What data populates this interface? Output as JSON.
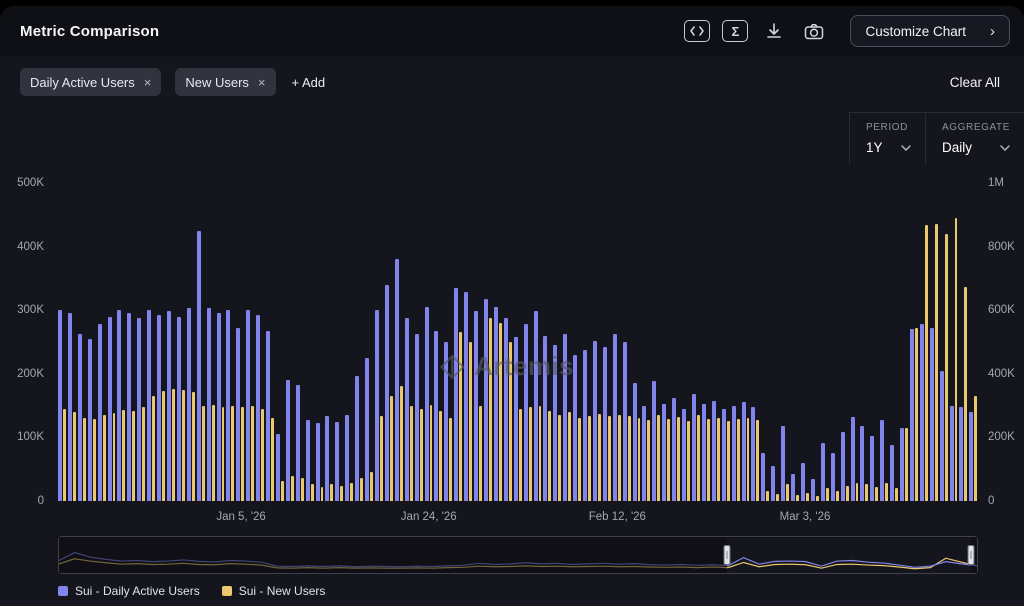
{
  "header": {
    "title": "Metric Comparison",
    "toolbar_icons": [
      "code-embed-icon",
      "sigma-icon",
      "download-icon",
      "camera-icon"
    ],
    "customize_button_label": "Customize Chart",
    "customize_chevron": "›"
  },
  "filters": {
    "chips": [
      {
        "label": "Daily Active Users",
        "close": "×"
      },
      {
        "label": "New Users",
        "close": "×"
      }
    ],
    "add_label": "+ Add",
    "clear_all_label": "Clear All"
  },
  "controls": {
    "period_label": "PERIOD",
    "period_value": "1Y",
    "aggregate_label": "AGGREGATE",
    "aggregate_value": "Daily"
  },
  "watermark_text": "Artemis",
  "legend": [
    {
      "label": "Sui - Daily Active Users",
      "color": "#8184ea"
    },
    {
      "label": "Sui - New Users",
      "color": "#e9c96b"
    }
  ],
  "colors": {
    "background": "#15161d",
    "header_background": "#0f1016",
    "purple_series": "#8184ea",
    "yellow_series": "#e9c96b",
    "chip_background": "#31343f",
    "muted_text": "#a2a7b3"
  },
  "chart_data": {
    "type": "bar",
    "subtype": "grouped daily bars, dual y-axis",
    "title": "Metric Comparison",
    "values_unit": "thousands",
    "left_axis": {
      "label": "Daily Active Users",
      "ticks": [
        "0",
        "100K",
        "200K",
        "300K",
        "400K",
        "500K"
      ],
      "max": 500
    },
    "right_axis": {
      "label": "New Users",
      "ticks": [
        "0",
        "200K",
        "400K",
        "600K",
        "800K",
        "1M"
      ],
      "max": 1000
    },
    "x_ticks": [
      {
        "label": "Jan 5, '26",
        "pos": 0.199
      },
      {
        "label": "Jan 24, '26",
        "pos": 0.403
      },
      {
        "label": "Feb 12, '26",
        "pos": 0.608
      },
      {
        "label": "Mar 3, '26",
        "pos": 0.812
      }
    ],
    "series": [
      {
        "name": "Sui - Daily Active Users",
        "axis": "left",
        "color": "#8184ea",
        "values": [
          300,
          295,
          262,
          255,
          278,
          290,
          300,
          296,
          288,
          300,
          293,
          298,
          290,
          303,
          425,
          303,
          295,
          300,
          272,
          300,
          293,
          268,
          105,
          190,
          183,
          128,
          122,
          133,
          124,
          136,
          196,
          225,
          300,
          340,
          380,
          288,
          262,
          305,
          268,
          250,
          335,
          328,
          298,
          318,
          305,
          288,
          258,
          278,
          298,
          260,
          245,
          262,
          230,
          238,
          252,
          242,
          262,
          250,
          185,
          150,
          188,
          152,
          162,
          145,
          168,
          152,
          158,
          145,
          150,
          155,
          148,
          75,
          55,
          118,
          42,
          60,
          35,
          92,
          75,
          108,
          132,
          118,
          102,
          128,
          88,
          115,
          270,
          278,
          272,
          205,
          150,
          148,
          140
        ]
      },
      {
        "name": "Sui - New Users",
        "axis": "right",
        "color": "#e9c96b",
        "values": [
          290,
          280,
          262,
          258,
          270,
          278,
          286,
          282,
          295,
          330,
          345,
          352,
          348,
          342,
          300,
          302,
          296,
          300,
          295,
          300,
          288,
          262,
          62,
          78,
          72,
          55,
          45,
          52,
          46,
          56,
          72,
          92,
          268,
          330,
          362,
          300,
          290,
          302,
          282,
          260,
          530,
          500,
          300,
          575,
          560,
          500,
          290,
          295,
          300,
          282,
          272,
          280,
          262,
          268,
          275,
          268,
          272,
          268,
          262,
          255,
          272,
          258,
          265,
          252,
          270,
          258,
          262,
          252,
          258,
          262,
          255,
          30,
          22,
          52,
          18,
          26,
          15,
          40,
          32,
          48,
          58,
          52,
          45,
          56,
          40,
          230,
          545,
          868,
          872,
          840,
          890,
          672,
          330
        ]
      }
    ],
    "navigator": {
      "selection_start": 0.728,
      "selection_end": 0.993,
      "purple": [
        34,
        62,
        46,
        38,
        32,
        34,
        30,
        32,
        36,
        31,
        29,
        34,
        32,
        28,
        14,
        13,
        15,
        13,
        15,
        12,
        14,
        13,
        12,
        14,
        13,
        15,
        17,
        24,
        20,
        22,
        26,
        22,
        24,
        20,
        22,
        24,
        21,
        23,
        19,
        18,
        20,
        17,
        19,
        16,
        44,
        21,
        31,
        32,
        30,
        14,
        32,
        34,
        28,
        25,
        18,
        10,
        14,
        30,
        22,
        16
      ],
      "yellow": [
        22,
        40,
        32,
        26,
        21,
        23,
        20,
        21,
        24,
        20,
        19,
        23,
        21,
        18,
        8,
        7,
        9,
        7,
        9,
        7,
        8,
        7,
        7,
        8,
        7,
        9,
        10,
        14,
        12,
        13,
        15,
        13,
        14,
        12,
        13,
        14,
        12,
        13,
        11,
        10,
        11,
        9,
        11,
        9,
        27,
        12,
        20,
        21,
        19,
        7,
        20,
        21,
        18,
        16,
        11,
        5,
        9,
        42,
        28,
        15
      ]
    }
  }
}
